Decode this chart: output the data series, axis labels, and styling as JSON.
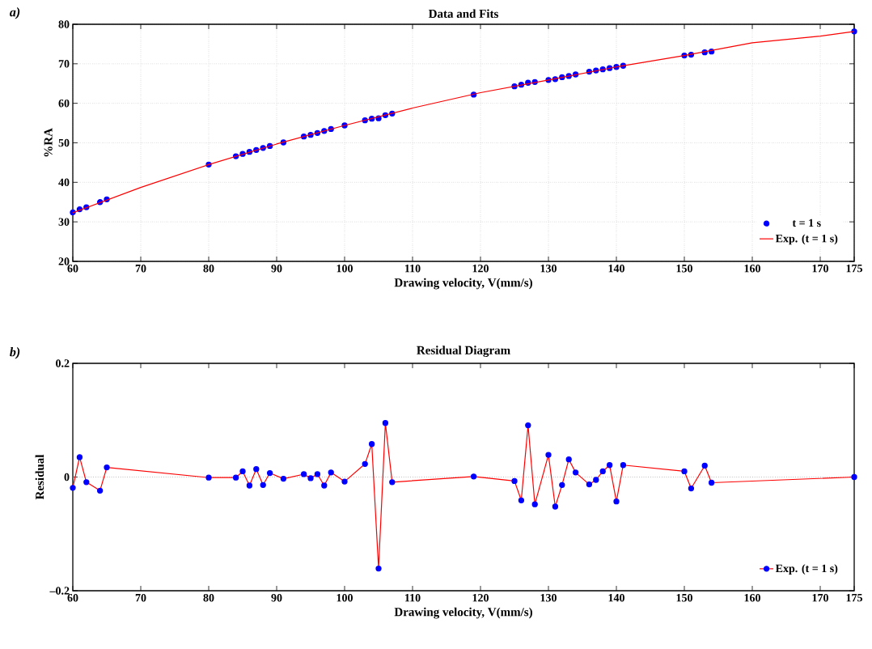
{
  "chart_data": [
    {
      "type": "scatter",
      "title": "Data and Fits",
      "xlabel": "Drawing velocity, V(mm/s)",
      "ylabel": "%RA",
      "annotations": [
        "a)"
      ],
      "x": [
        60,
        61,
        62,
        64,
        65,
        80,
        84,
        85,
        86,
        87,
        88,
        89,
        91,
        94,
        95,
        96,
        97,
        98,
        100,
        103,
        104,
        105,
        106,
        107,
        119,
        125,
        126,
        127,
        128,
        130,
        131,
        132,
        133,
        134,
        136,
        137,
        138,
        139,
        140,
        141,
        150,
        151,
        153,
        154,
        175
      ],
      "series": [
        {
          "name": "t = 1 s",
          "type": "scatter",
          "color": "#0000ff",
          "values": [
            32.4,
            33.2,
            33.7,
            35.0,
            35.7,
            44.5,
            46.6,
            47.2,
            47.7,
            48.2,
            48.7,
            49.2,
            50.1,
            51.6,
            52.0,
            52.5,
            53.0,
            53.5,
            54.4,
            55.7,
            56.1,
            56.2,
            57.0,
            57.4,
            62.2,
            64.3,
            64.7,
            65.2,
            65.4,
            65.9,
            66.1,
            66.6,
            66.9,
            67.3,
            68.0,
            68.3,
            68.6,
            68.9,
            69.2,
            69.5,
            72.1,
            72.3,
            72.9,
            73.1,
            78.2
          ]
        },
        {
          "name": "Exp. (t = 1 s)",
          "type": "line",
          "marker": "none",
          "color": "#ff0000",
          "x": [
            60,
            70,
            80,
            90,
            100,
            110,
            120,
            130,
            140,
            150,
            160,
            170,
            175
          ],
          "values": [
            32.3,
            38.7,
            44.5,
            49.7,
            54.4,
            58.8,
            62.7,
            65.9,
            69.2,
            72.1,
            75.3,
            77.0,
            78.2
          ]
        }
      ],
      "xlim": [
        60,
        175
      ],
      "ylim": [
        20,
        80
      ],
      "xticks": [
        60,
        70,
        80,
        90,
        100,
        110,
        120,
        130,
        140,
        150,
        160,
        170,
        175
      ],
      "yticks": [
        20,
        30,
        40,
        50,
        60,
        70,
        80
      ],
      "grid": true,
      "legend": "bottom right",
      "marker": "circle"
    },
    {
      "type": "line",
      "title": "Residual Diagram",
      "xlabel": "Drawing velocity, V(mm/s)",
      "ylabel": "Residual",
      "annotations": [
        "b)"
      ],
      "x": [
        60,
        61,
        62,
        64,
        65,
        80,
        84,
        85,
        86,
        87,
        88,
        89,
        91,
        94,
        95,
        96,
        97,
        98,
        100,
        103,
        104,
        105,
        106,
        107,
        119,
        125,
        126,
        127,
        128,
        130,
        131,
        132,
        133,
        134,
        136,
        137,
        138,
        139,
        140,
        141,
        150,
        151,
        153,
        154,
        175
      ],
      "series": [
        {
          "name": "Exp. (t = 1 s)",
          "color": "#ff0000",
          "colors": [
            "#0000ff",
            "#0000ff",
            "#0000ff",
            "#0000ff",
            "#0000ff",
            "#0000ff",
            "#0000ff",
            "#0000ff",
            "#0000ff",
            "#0000ff",
            "#0000ff",
            "#0000ff",
            "#0000ff",
            "#0000ff",
            "#0000ff",
            "#0000ff",
            "#0000ff",
            "#0000ff",
            "#0000ff",
            "#0000ff",
            "#0000ff",
            "#0000ff",
            "#0000ff",
            "#0000ff",
            "#0000ff",
            "#0000ff",
            "#0000ff",
            "#0000ff",
            "#0000ff",
            "#0000ff",
            "#0000ff",
            "#0000ff",
            "#0000ff",
            "#0000ff",
            "#0000ff",
            "#0000ff",
            "#0000ff",
            "#0000ff",
            "#0000ff",
            "#0000ff",
            "#0000ff",
            "#0000ff",
            "#0000ff",
            "#0000ff",
            "#0000ff"
          ],
          "values": [
            -0.019,
            0.035,
            -0.009,
            -0.024,
            0.017,
            -0.001,
            -0.001,
            0.01,
            -0.015,
            0.014,
            -0.014,
            0.007,
            -0.003,
            0.005,
            -0.002,
            0.005,
            -0.015,
            0.008,
            -0.008,
            0.023,
            0.058,
            -0.161,
            0.095,
            -0.009,
            0.001,
            -0.007,
            -0.041,
            0.091,
            -0.048,
            0.039,
            -0.052,
            -0.014,
            0.031,
            0.008,
            -0.013,
            -0.005,
            0.01,
            0.021,
            -0.043,
            0.021,
            0.01,
            -0.02,
            0.02,
            -0.01,
            0.0
          ]
        }
      ],
      "xlim": [
        60,
        175
      ],
      "ylim": [
        -0.2,
        0.2
      ],
      "xticks": [
        60,
        70,
        80,
        90,
        100,
        110,
        120,
        130,
        140,
        150,
        160,
        170,
        175
      ],
      "yticks": [
        {
          "value": -0.2,
          "label": "–0.2"
        },
        0,
        0.2
      ],
      "ref_lines": [
        {
          "axis": "y",
          "value": 0,
          "color": "#999999",
          "line_style": "dotted"
        }
      ],
      "legend": "bottom right",
      "marker": "circle"
    }
  ]
}
